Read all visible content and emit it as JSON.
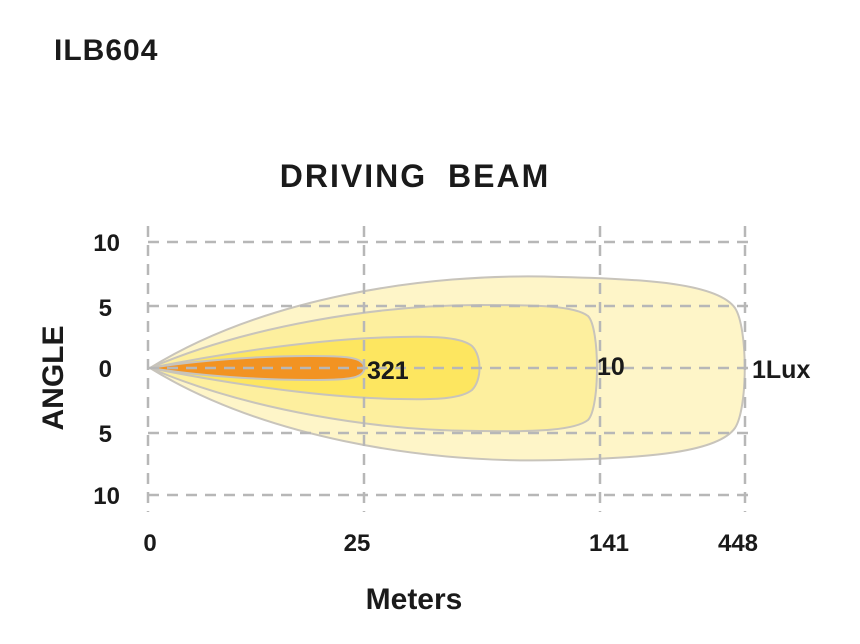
{
  "header": {
    "model": "ILB604"
  },
  "chart_data": {
    "type": "area",
    "title": "DRIVING  BEAM",
    "xlabel": "Meters",
    "ylabel": "ANGLE",
    "x_ticks": [
      "0",
      "25",
      "141",
      "448"
    ],
    "y_ticks": [
      "10",
      "5",
      "0",
      "5",
      "10"
    ],
    "grid": true,
    "series": [
      {
        "name": "1Lux",
        "reach": 448,
        "max_angle": 7.3,
        "color": "#fef5c8"
      },
      {
        "name": "10",
        "reach": 141,
        "max_angle": 4.9,
        "color": "#fdef9e"
      },
      {
        "name": "",
        "reach": 60,
        "max_angle": 2.4,
        "color": "#fde660"
      },
      {
        "name": "321",
        "reach": 25,
        "max_angle": 1.0,
        "color": "#f29322"
      }
    ],
    "colors": {
      "outline": "#c8c4bb",
      "grid": "#b7b7b7",
      "text": "#1a1a1a"
    }
  }
}
